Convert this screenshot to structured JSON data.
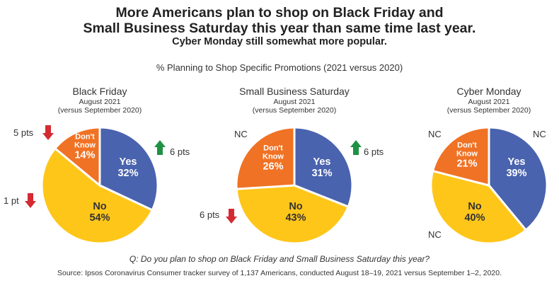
{
  "header": {
    "title_line1": "More Americans plan to shop on Black Friday and",
    "title_line2": "Small Business Saturday this year than same time last year.",
    "subtitle": "Cyber Monday still somewhat more popular.",
    "caption": "% Planning to Shop Specific Promotions (2021 versus 2020)"
  },
  "colors": {
    "yes": "#4A63AE",
    "no": "#FFC61A",
    "dont_know": "#F07224",
    "down_arrow": "#D42A32",
    "up_arrow": "#1E9145"
  },
  "chart_data": [
    {
      "type": "pie",
      "title": "Black Friday",
      "period": "August 2021",
      "comparison": "(versus September 2020)",
      "slices": [
        {
          "label": "Yes",
          "value": 32,
          "pct": "32%"
        },
        {
          "label": "No",
          "value": 54,
          "pct": "54%"
        },
        {
          "label": "Don't Know",
          "label_l1": "Don't",
          "label_l2": "Know",
          "value": 14,
          "pct": "14%"
        }
      ],
      "changes": {
        "yes": {
          "text": "6 pts",
          "direction": "up"
        },
        "no": {
          "text": "1 pt",
          "direction": "down"
        },
        "dont_know": {
          "text": "5 pts",
          "direction": "down"
        }
      }
    },
    {
      "type": "pie",
      "title": "Small Business Saturday",
      "period": "August 2021",
      "comparison": "(versus September 2020)",
      "slices": [
        {
          "label": "Yes",
          "value": 31,
          "pct": "31%"
        },
        {
          "label": "No",
          "value": 43,
          "pct": "43%"
        },
        {
          "label": "Don't Know",
          "label_l1": "Don't",
          "label_l2": "Know",
          "value": 26,
          "pct": "26%"
        }
      ],
      "changes": {
        "yes": {
          "text": "6 pts",
          "direction": "up"
        },
        "no": {
          "text": "6 pts",
          "direction": "down"
        },
        "dont_know": {
          "text": "NC",
          "direction": "none"
        }
      }
    },
    {
      "type": "pie",
      "title": "Cyber Monday",
      "period": "August 2021",
      "comparison": "(versus September 2020)",
      "slices": [
        {
          "label": "Yes",
          "value": 39,
          "pct": "39%"
        },
        {
          "label": "No",
          "value": 40,
          "pct": "40%"
        },
        {
          "label": "Don't Know",
          "label_l1": "Don't",
          "label_l2": "Know",
          "value": 21,
          "pct": "21%"
        }
      ],
      "changes": {
        "yes": {
          "text": "NC",
          "direction": "none"
        },
        "no": {
          "text": "NC",
          "direction": "none"
        },
        "dont_know": {
          "text": "NC",
          "direction": "none"
        }
      }
    }
  ],
  "footer": {
    "question": "Q: Do you plan to shop on Black Friday and Small Business Saturday this year?",
    "source": "Source: Ipsos Coronavirus Consumer tracker survey of 1,137 Americans, conducted August 18–19, 2021 versus September 1–2, 2020."
  }
}
